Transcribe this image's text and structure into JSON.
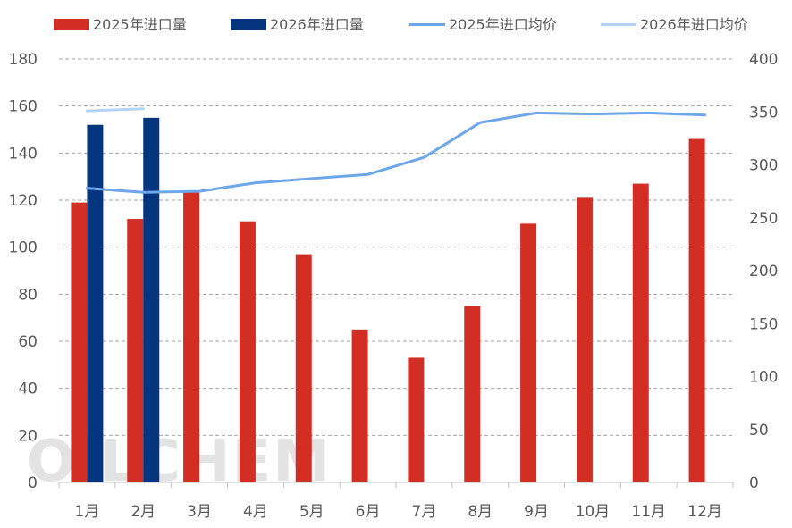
{
  "chart_data": {
    "type": "bar+line",
    "title": "",
    "categories": [
      "1月",
      "2月",
      "3月",
      "4月",
      "5月",
      "6月",
      "7月",
      "8月",
      "9月",
      "10月",
      "11月",
      "12月"
    ],
    "series": [
      {
        "name": "2025年进口量",
        "kind": "bar",
        "axis": "left",
        "color": "#d22e23",
        "values": [
          119,
          112,
          124,
          111,
          97,
          65,
          53,
          75,
          110,
          121,
          127,
          146
        ]
      },
      {
        "name": "2026年进口量",
        "kind": "bar",
        "axis": "left",
        "color": "#06357f",
        "values": [
          152,
          155,
          null,
          null,
          null,
          null,
          null,
          null,
          null,
          null,
          null,
          null
        ]
      },
      {
        "name": "2025年进口均价",
        "kind": "line",
        "axis": "right",
        "color": "#6ea6ea",
        "values": [
          278,
          274,
          275,
          283,
          287,
          291,
          307,
          340,
          349,
          348,
          349,
          347
        ]
      },
      {
        "name": "2026年进口均价",
        "kind": "line",
        "axis": "right",
        "color": "#b3d3f5",
        "values": [
          351,
          353,
          null,
          null,
          null,
          null,
          null,
          null,
          null,
          null,
          null,
          null
        ]
      }
    ],
    "y_left": {
      "min": 0,
      "max": 180,
      "step": 20,
      "ticks": [
        "0",
        "20",
        "40",
        "60",
        "80",
        "100",
        "120",
        "140",
        "160",
        "180"
      ]
    },
    "y_right": {
      "min": 0,
      "max": 400,
      "step": 50,
      "ticks": [
        "0",
        "50",
        "100",
        "150",
        "200",
        "250",
        "300",
        "350",
        "400"
      ]
    },
    "grid": true,
    "legend_position": "top",
    "watermark": "OILCHEM"
  }
}
